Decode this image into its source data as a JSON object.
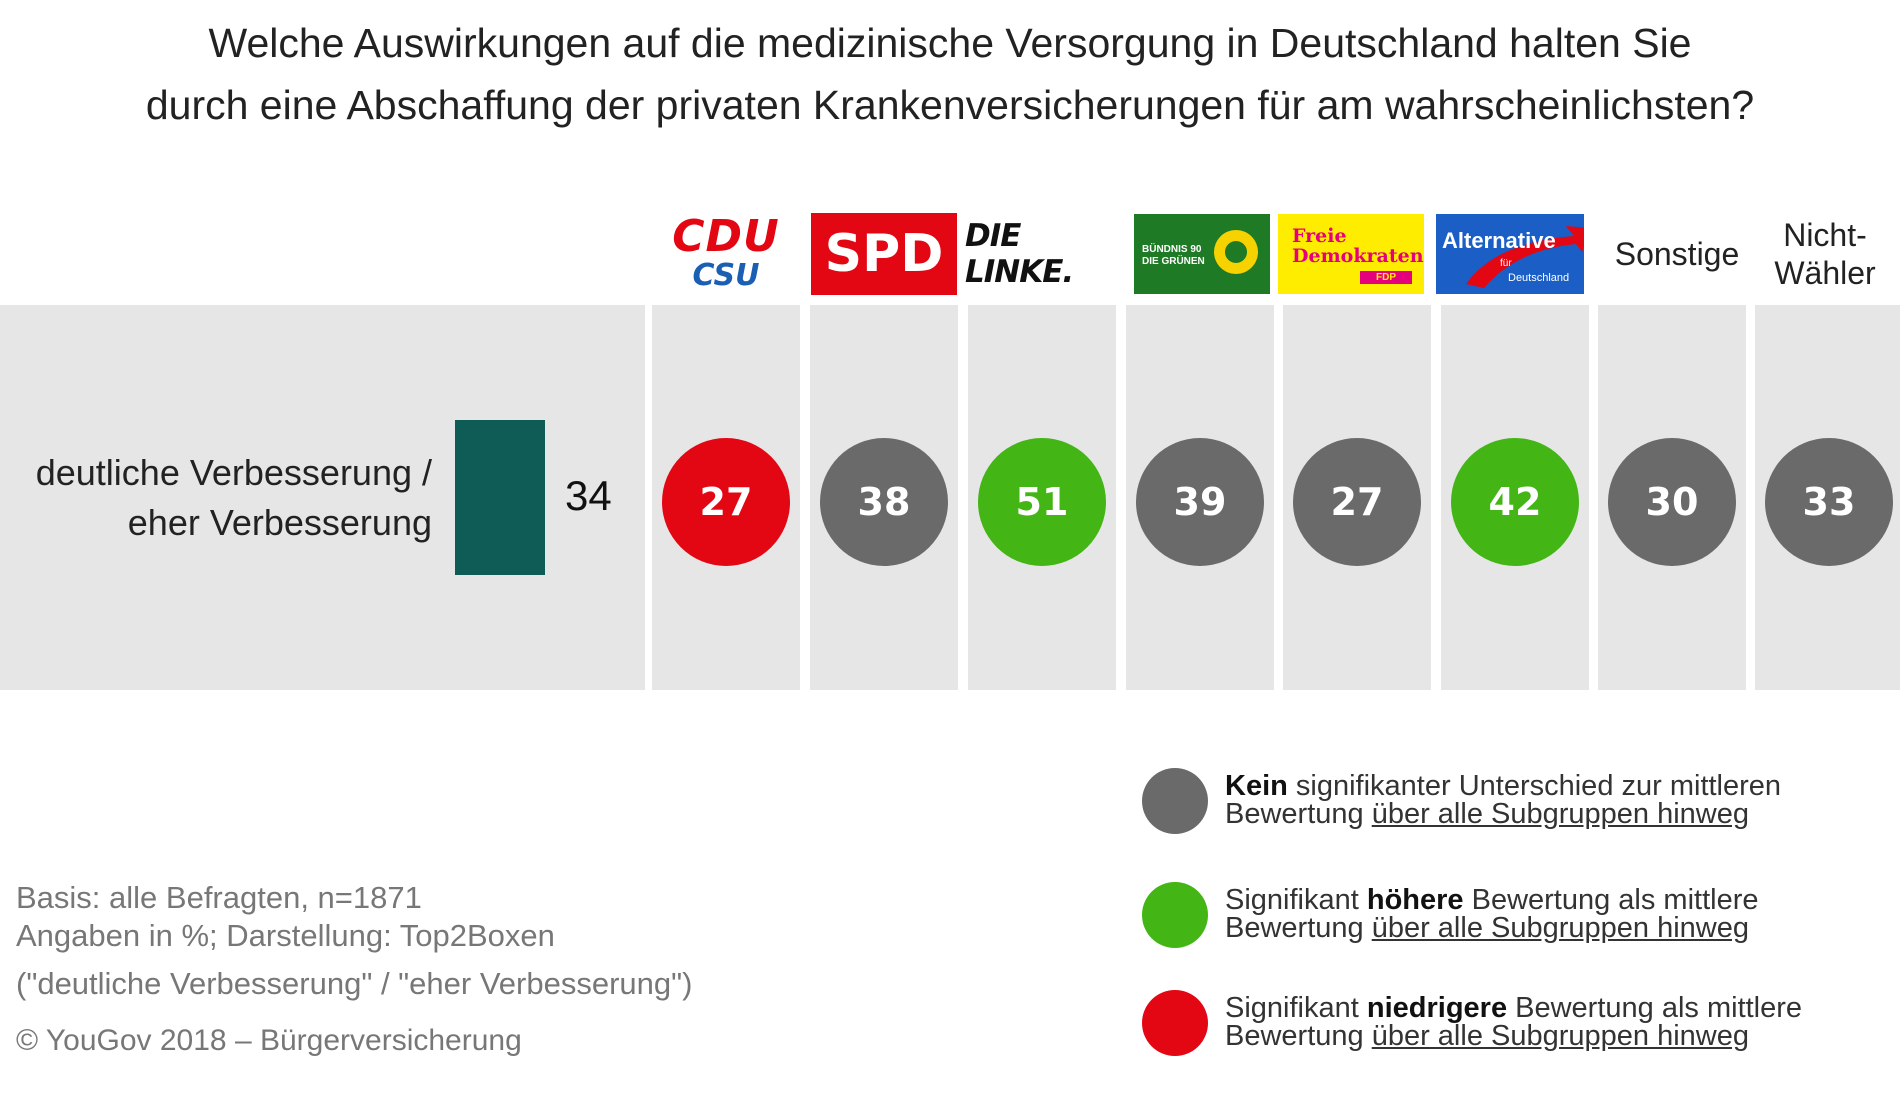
{
  "title_line1": "Welche Auswirkungen auf die medizinische Versorgung in Deutschland halten Sie",
  "title_line2": "durch eine Abschaffung der privaten Krankenversicherungen für am wahrscheinlichsten?",
  "row_label_line1": "deutliche Verbesserung /",
  "row_label_line2": "eher Verbesserung",
  "logos": {
    "cdu": "CDU",
    "csu": "CSU",
    "spd": "SPD",
    "linke": "DIE LINKE.",
    "gruene_line1": "BÜNDNIS 90",
    "gruene_line2": "DIE GRÜNEN",
    "fdp_line1": "Freie",
    "fdp_line2": "Demokraten",
    "fdp_line3": "FDP",
    "afd_line1": "Alternative",
    "afd_line2": "für",
    "afd_line3": "Deutschland",
    "sonstige": "Sonstige",
    "nicht_line1": "Nicht-",
    "nicht_line2": "Wähler"
  },
  "colors": {
    "green": "#43b515",
    "red": "#e30613",
    "grey": "#6a6a6a",
    "total_bar": "#0e5c55",
    "band": "#e6e6e6"
  },
  "legend": [
    {
      "bold": "Kein",
      "rest1": " signifikanter Unterschied zur mittleren",
      "line2a": "Bewertung ",
      "line2u": "über alle Subgruppen hinweg",
      "prefix": "",
      "color": "#6a6a6a"
    },
    {
      "prefix": "Signifikant ",
      "bold": "höhere",
      "rest1": " Bewertung als mittlere",
      "line2a": "Bewertung ",
      "line2u": "über alle Subgruppen hinweg",
      "color": "#43b515"
    },
    {
      "prefix": "Signifikant ",
      "bold": "niedrigere",
      "rest1": " Bewertung als mittlere",
      "line2a": "Bewertung ",
      "line2u": "über alle Subgruppen hinweg",
      "color": "#e30613"
    }
  ],
  "footer": {
    "line1": "Basis: alle Befragten, n=1871",
    "line2": "Angaben in %; Darstellung: Top2Boxen",
    "line3": "(\"deutliche Verbesserung\" / \"eher Verbesserung\")",
    "line4": "©  YouGov 2018 – Bürgerversicherung"
  },
  "chart_data": {
    "type": "bar",
    "total": {
      "label": "deutliche Verbesserung / eher Verbesserung",
      "value": 34
    },
    "categories": [
      "CDU/CSU",
      "SPD",
      "DIE LINKE.",
      "BÜNDNIS 90/DIE GRÜNEN",
      "Freie Demokraten FDP",
      "Alternative für Deutschland",
      "Sonstige",
      "Nicht-Wähler"
    ],
    "values": [
      27,
      38,
      51,
      39,
      27,
      42,
      30,
      33
    ],
    "significance": [
      "niedrigere",
      "kein",
      "höhere",
      "kein",
      "kein",
      "höhere",
      "kein",
      "kein"
    ]
  }
}
